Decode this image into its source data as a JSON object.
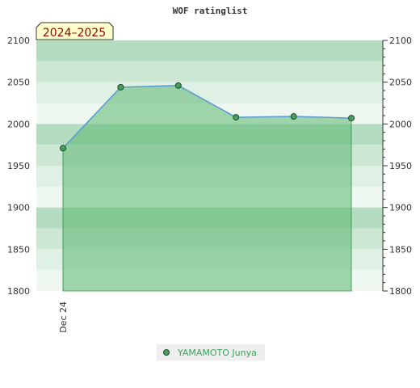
{
  "chart_data": {
    "type": "area",
    "title": "WOF ratinglist",
    "season_label": "2024–2025",
    "x_tick_labels": [
      "Dec 24"
    ],
    "ylim": [
      1800,
      2100
    ],
    "y_ticks": [
      1800,
      1850,
      1900,
      1950,
      2000,
      2050,
      2100
    ],
    "grid": true,
    "legend_position": "bottom",
    "series": [
      {
        "name": "YAMAMOTO Junya",
        "values": [
          1971,
          2044,
          2046,
          2008,
          2009,
          2007
        ]
      }
    ],
    "colors": {
      "area": "#5cb871",
      "line": "#5b9bd5",
      "marker": "#44a05a",
      "band_dark": "#b3dcc0",
      "band_mid": "#cce7d4",
      "band_light": "#dff0e4",
      "band_lightest": "#eef7f0"
    }
  }
}
